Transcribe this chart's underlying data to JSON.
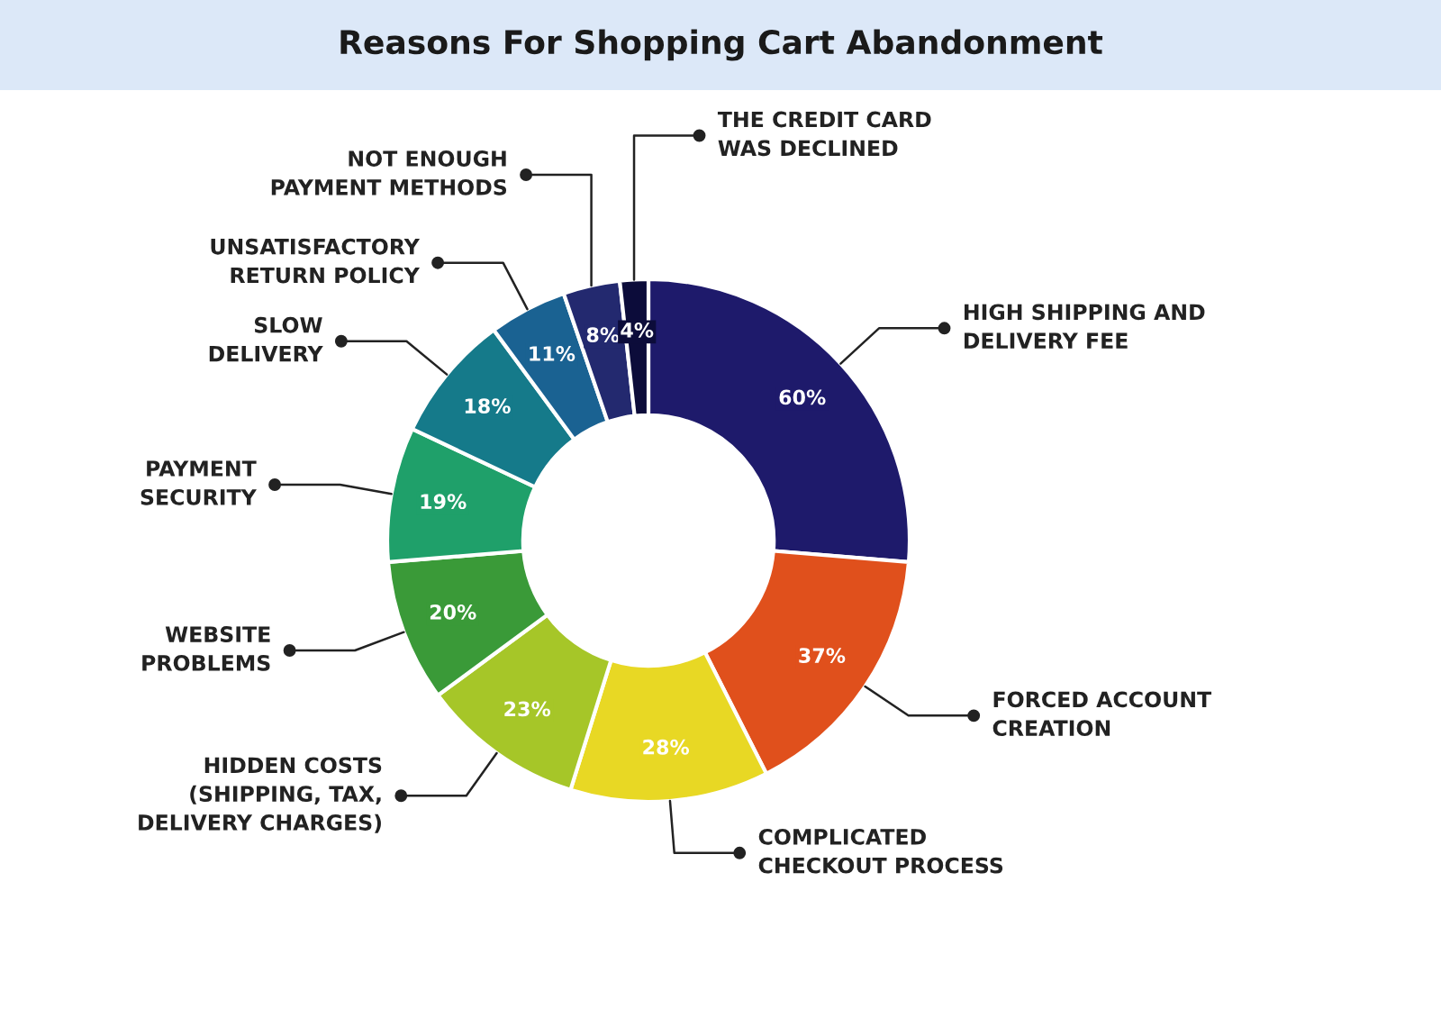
{
  "chart_data": {
    "type": "donut",
    "title": "Reasons For Shopping Cart Abandonment",
    "categories": [
      "HIGH SHIPPING AND\nDELIVERY FEE",
      "FORCED ACCOUNT\nCREATION",
      "COMPLICATED\nCHECKOUT PROCESS",
      "HIDDEN COSTS\n(SHIPPING, TAX,\nDELIVERY CHARGES)",
      "WEBSITE\nPROBLEMS",
      "PAYMENT\nSECURITY",
      "SLOW\nDELIVERY",
      "UNSATISFACTORY\nRETURN POLICY",
      "NOT ENOUGH\nPAYMENT METHODS",
      "THE CREDIT CARD\nWAS DECLINED"
    ],
    "values": [
      60,
      37,
      28,
      23,
      20,
      19,
      18,
      11,
      8,
      4
    ],
    "value_labels": [
      "60%",
      "37%",
      "28%",
      "23%",
      "20%",
      "19%",
      "18%",
      "11%",
      "8%",
      "4%"
    ],
    "colors": [
      "#1e1a6b",
      "#e0501c",
      "#e8d824",
      "#a6c628",
      "#3a9a38",
      "#1fa06a",
      "#157a8a",
      "#1a6292",
      "#23296f",
      "#0c0c3a"
    ]
  }
}
